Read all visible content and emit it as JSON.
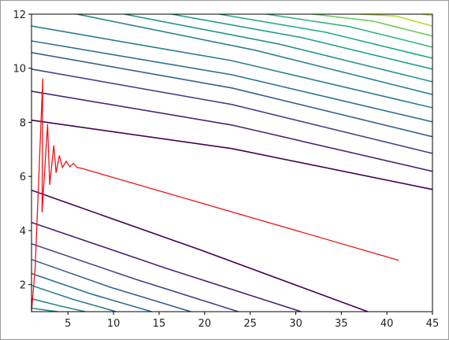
{
  "chart_data": {
    "type": "contour",
    "xlim": [
      1,
      45
    ],
    "ylim": [
      1,
      12
    ],
    "xticks": [
      5,
      10,
      15,
      20,
      25,
      30,
      35,
      40,
      45
    ],
    "yticks": [
      2,
      4,
      6,
      8,
      10,
      12
    ],
    "contours": [
      {
        "color": "#440154",
        "x": [
          1,
          19.4,
          37.9
        ],
        "y": [
          5.49,
          3.3,
          1
        ]
      },
      {
        "color": "#482475",
        "x": [
          1,
          15.8,
          30.6
        ],
        "y": [
          4.3,
          2.6,
          1
        ]
      },
      {
        "color": "#414487",
        "x": [
          1,
          12.4,
          23.7
        ],
        "y": [
          3.51,
          2.2,
          1
        ]
      },
      {
        "color": "#355f8d",
        "x": [
          1,
          9.7,
          18.5
        ],
        "y": [
          2.93,
          1.9,
          1
        ]
      },
      {
        "color": "#2d708e",
        "x": [
          1,
          7.6,
          14.2
        ],
        "y": [
          2.41,
          1.65,
          1
        ]
      },
      {
        "color": "#277f8e",
        "x": [
          1,
          5.6,
          10.3
        ],
        "y": [
          1.97,
          1.45,
          1
        ]
      },
      {
        "color": "#238a8d",
        "x": [
          1,
          4,
          6.9
        ],
        "y": [
          1.48,
          1.22,
          1
        ]
      },
      {
        "color": "#21918c",
        "x": [
          1,
          2.5,
          3.9
        ],
        "y": [
          1.13,
          1.06,
          1
        ]
      },
      {
        "color": "#440154",
        "x": [
          1,
          23,
          45
        ],
        "y": [
          8.08,
          7.03,
          5.52
        ]
      },
      {
        "color": "#482475",
        "x": [
          1,
          23,
          45
        ],
        "y": [
          9.15,
          7.9,
          6.19
        ]
      },
      {
        "color": "#414487",
        "x": [
          1,
          23,
          45
        ],
        "y": [
          9.97,
          8.66,
          6.85
        ]
      },
      {
        "color": "#355f8d",
        "x": [
          1,
          23,
          45
        ],
        "y": [
          10.58,
          9.27,
          7.47
        ]
      },
      {
        "color": "#2d708e",
        "x": [
          1,
          23,
          45
        ],
        "y": [
          11.01,
          9.76,
          8.02
        ]
      },
      {
        "color": "#287d8e",
        "x": [
          1,
          23,
          45
        ],
        "y": [
          11.56,
          10.28,
          8.54
        ]
      },
      {
        "color": "#26828e",
        "x": [
          6.0,
          25.5,
          45
        ],
        "y": [
          12,
          10.67,
          9.03
        ]
      },
      {
        "color": "#21918c",
        "x": [
          11.2,
          28.1,
          45
        ],
        "y": [
          12,
          10.9,
          9.5
        ]
      },
      {
        "color": "#1f9e89",
        "x": [
          16.4,
          30.7,
          45
        ],
        "y": [
          12,
          11.13,
          9.97
        ]
      },
      {
        "color": "#25ab82",
        "x": [
          21.6,
          33.3,
          45
        ],
        "y": [
          12,
          11.33,
          10.37
        ]
      },
      {
        "color": "#35b779",
        "x": [
          26.8,
          35.9,
          45
        ],
        "y": [
          12,
          11.54,
          10.78
        ]
      },
      {
        "color": "#6ccd5a",
        "x": [
          31.9,
          38.5,
          45
        ],
        "y": [
          12,
          11.74,
          11.19
        ]
      },
      {
        "color": "#b5de2b",
        "x": [
          37.1,
          41,
          45
        ],
        "y": [
          12,
          11.93,
          11.56
        ]
      },
      {
        "color": "#dde318",
        "x": [
          42.3,
          43.6,
          45
        ],
        "y": [
          12,
          12.02,
          11.94
        ]
      }
    ],
    "series": [
      {
        "color": "#e8141c",
        "x": [
          1,
          1.4,
          2.24,
          2.16,
          2.76,
          3.0,
          3.45,
          3.7,
          4.05,
          4.4,
          4.8,
          5.2,
          5.6,
          6.0,
          6.5,
          41.3
        ],
        "y": [
          1,
          2.6,
          9.62,
          4.67,
          7.93,
          5.69,
          7.15,
          6.13,
          6.77,
          6.33,
          6.56,
          6.36,
          6.48,
          6.33,
          6.3,
          2.9
        ]
      }
    ]
  }
}
